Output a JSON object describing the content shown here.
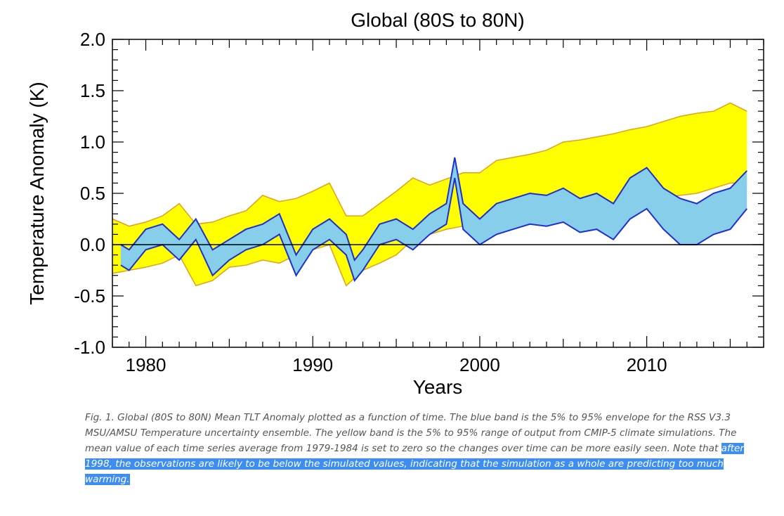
{
  "chart_data": {
    "type": "area",
    "title": "Global (80S to 80N)",
    "xlabel": "Years",
    "ylabel": "Temperature Anomaly (K)",
    "xlim": [
      1978,
      2017
    ],
    "ylim": [
      -1.0,
      2.0
    ],
    "xticks": [
      "1980",
      "1990",
      "2000",
      "2010"
    ],
    "yticks": [
      "2.0",
      "1.5",
      "1.0",
      "0.5",
      "0.0",
      "-0.5",
      "-1.0"
    ],
    "grid": false,
    "zero_line": true,
    "colors": {
      "model_band_fill": "#ffff00",
      "model_band_edge": "#e0a020",
      "obs_band_fill": "#87ceeb",
      "obs_band_edge": "#1f2fcf",
      "zero_line": "#000000"
    },
    "series": [
      {
        "x": [
          1978,
          1979,
          1980,
          1981,
          1982,
          1983,
          1984,
          1985,
          1986,
          1987,
          1988,
          1989,
          1990,
          1991,
          1992,
          1993,
          1994,
          1995,
          1996,
          1997,
          1998,
          1999,
          2000,
          2001,
          2002,
          2003,
          2004,
          2005,
          2006,
          2007,
          2008,
          2009,
          2010,
          2011,
          2012,
          2013,
          2014,
          2015,
          2016
        ],
        "upper": [
          0.25,
          0.18,
          0.22,
          0.28,
          0.4,
          0.2,
          0.22,
          0.28,
          0.33,
          0.48,
          0.42,
          0.45,
          0.52,
          0.6,
          0.28,
          0.28,
          0.4,
          0.52,
          0.65,
          0.58,
          0.64,
          0.7,
          0.7,
          0.82,
          0.85,
          0.88,
          0.92,
          1.0,
          1.02,
          1.05,
          1.08,
          1.12,
          1.15,
          1.2,
          1.25,
          1.28,
          1.3,
          1.38,
          1.3
        ],
        "lower": [
          -0.28,
          -0.25,
          -0.22,
          -0.18,
          -0.1,
          -0.4,
          -0.35,
          -0.22,
          -0.2,
          -0.15,
          -0.18,
          -0.1,
          -0.05,
          0.0,
          -0.4,
          -0.25,
          -0.18,
          -0.1,
          0.05,
          0.1,
          0.15,
          0.18,
          0.22,
          0.22,
          0.25,
          0.25,
          0.26,
          0.3,
          0.32,
          0.35,
          0.36,
          0.4,
          0.42,
          0.46,
          0.48,
          0.5,
          0.55,
          0.6,
          0.6
        ]
      },
      {
        "x": [
          1978.5,
          1979,
          1980,
          1981,
          1982,
          1983,
          1984,
          1985,
          1986,
          1987,
          1988,
          1989,
          1990,
          1991,
          1992,
          1992.5,
          1993,
          1994,
          1995,
          1996,
          1997,
          1998,
          1998.5,
          1999,
          2000,
          2001,
          2002,
          2003,
          2004,
          2005,
          2006,
          2007,
          2008,
          2009,
          2010,
          2011,
          2012,
          2013,
          2014,
          2015,
          2016
        ],
        "upper": [
          0.0,
          -0.05,
          0.15,
          0.2,
          0.05,
          0.25,
          -0.05,
          0.05,
          0.15,
          0.2,
          0.3,
          -0.1,
          0.15,
          0.25,
          0.1,
          -0.15,
          -0.05,
          0.2,
          0.25,
          0.15,
          0.3,
          0.4,
          0.85,
          0.4,
          0.25,
          0.4,
          0.45,
          0.5,
          0.48,
          0.55,
          0.45,
          0.5,
          0.4,
          0.65,
          0.75,
          0.55,
          0.45,
          0.4,
          0.5,
          0.55,
          0.72
        ],
        "lower": [
          -0.2,
          -0.25,
          -0.05,
          0.0,
          -0.15,
          0.05,
          -0.3,
          -0.15,
          -0.05,
          0.0,
          0.1,
          -0.3,
          -0.05,
          0.05,
          -0.1,
          -0.35,
          -0.25,
          0.0,
          0.05,
          -0.05,
          0.1,
          0.2,
          0.65,
          0.15,
          0.0,
          0.1,
          0.15,
          0.2,
          0.18,
          0.22,
          0.12,
          0.15,
          0.05,
          0.25,
          0.35,
          0.15,
          0.0,
          0.0,
          0.1,
          0.15,
          0.35
        ]
      }
    ]
  },
  "caption": {
    "text": "Fig. 1.  Global (80S to 80N) Mean TLT Anomaly plotted as a function of time.  The blue band is the 5% to 95% envelope for the RSS V3.3 MSU/AMSU Temperature uncertainty ensemble.  The yellow band is the 5% to 95% range of output from CMIP-5 climate simulations.  The mean value of each time series average from 1979-1984 is set to zero so the changes over time can be more easily seen.  Note that ",
    "highlighted": "after 1998, the observations are likely to be below the simulated values, indicating that the simulation as a whole are predicting too much warming."
  }
}
